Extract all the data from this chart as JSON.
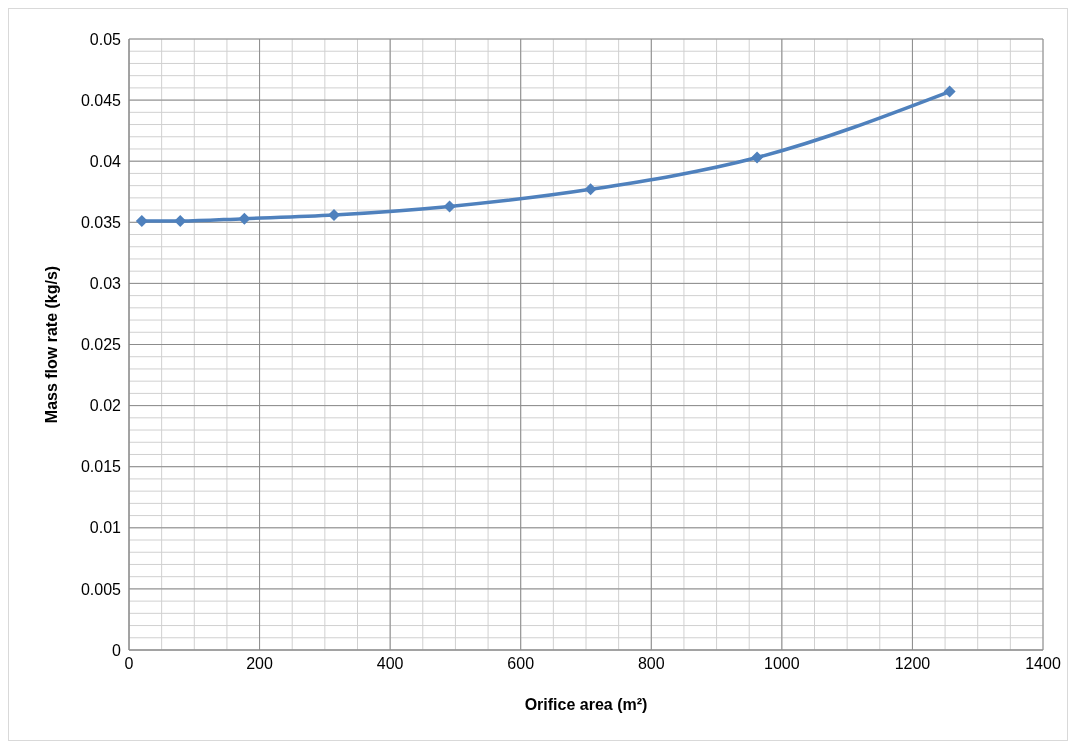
{
  "chart_data": {
    "type": "line",
    "xlabel": "Orifice area (m²)",
    "ylabel": "Mass flow rate (kg/s)",
    "x": [
      19.6,
      78.5,
      176.7,
      314,
      491,
      707,
      962,
      1257
    ],
    "series": [
      {
        "color": "#4f81bd",
        "values": [
          0.0351,
          0.0351,
          0.0353,
          0.0356,
          0.0363,
          0.0377,
          0.0403,
          0.0457
        ]
      }
    ],
    "xlim": [
      0,
      1400
    ],
    "xticks": [
      0,
      200,
      400,
      600,
      800,
      1000,
      1200,
      1400
    ],
    "ylim": [
      0,
      0.05
    ],
    "yticks": [
      0,
      0.005,
      0.01,
      0.015,
      0.02,
      0.025,
      0.03,
      0.035,
      0.04,
      0.045,
      0.05
    ],
    "grid": true,
    "marker": "diamond",
    "line_style": "solid",
    "legend": false
  }
}
